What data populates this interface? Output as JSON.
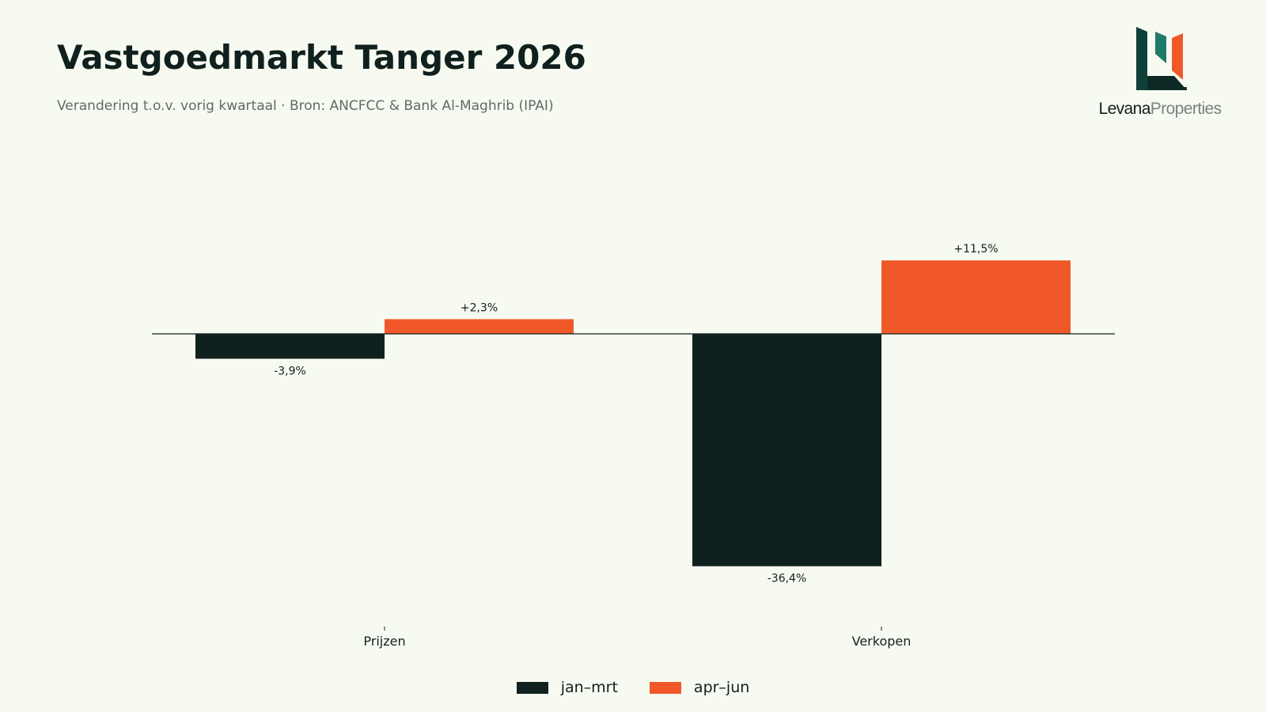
{
  "header": {
    "title": "Vastgoedmarkt Tanger 2026",
    "subtitle": "Verandering t.o.v. vorig kwartaal · Bron: ANCFCC & Bank Al-Maghrib (IPAI)"
  },
  "logo": {
    "name": "Levana",
    "suffix": "Properties",
    "colors": {
      "dark": "#10403a",
      "teal": "#1f7a6a",
      "orange": "#f0582a"
    }
  },
  "chart_data": {
    "type": "bar",
    "categories": [
      "Prijzen",
      "Verkopen"
    ],
    "series": [
      {
        "name": "jan–mrt",
        "color": "#10201e",
        "values": [
          -3.9,
          -36.4
        ],
        "labels": [
          "-3,9%",
          "-36,4%"
        ]
      },
      {
        "name": "apr–jun",
        "color": "#f0582a",
        "values": [
          2.3,
          11.5
        ],
        "labels": [
          "+2,3%",
          "+11,5%"
        ]
      }
    ],
    "legend_position": "bottom-center",
    "grid": false
  }
}
